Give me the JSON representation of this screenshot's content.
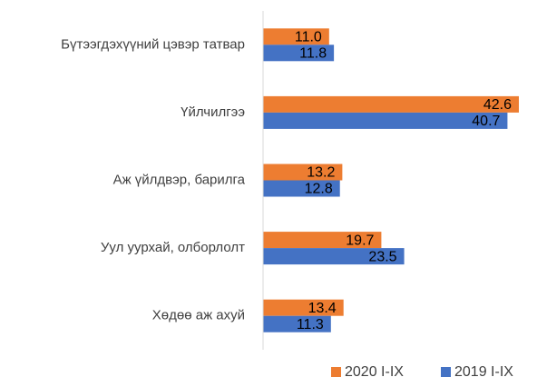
{
  "chart_data": {
    "type": "hbar",
    "categories": [
      "Бүтээгдэхүүний цэвэр татвар",
      "Үйлчилгээ",
      "Аж үйлдвэр, барилга",
      "Уул уурхай, олборлолт",
      "Хөдөө аж ахуй"
    ],
    "series": [
      {
        "name": "2020 I-IX",
        "color": "#ed7d31",
        "values": [
          11.0,
          42.6,
          13.2,
          19.7,
          13.4
        ],
        "value_labels": [
          "11.0",
          "42.6",
          "13.2",
          "19.7",
          "13.4"
        ]
      },
      {
        "name": "2019 I-IX",
        "color": "#4472c4",
        "values": [
          11.8,
          40.7,
          12.8,
          23.5,
          11.3
        ]
      }
    ],
    "legend": "bottom-right"
  }
}
